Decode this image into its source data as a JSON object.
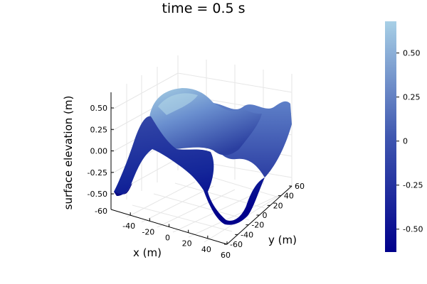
{
  "chart_data": {
    "type": "surface",
    "title": "time = 0.5 s",
    "xlabel": "x (m)",
    "ylabel": "y (m)",
    "zlabel": "surface elevation (m)",
    "xlim": [
      -60,
      60
    ],
    "ylim": [
      -60,
      60
    ],
    "zlim": [
      -0.6,
      0.7
    ],
    "x_ticks": [
      "-40",
      "-20",
      "0",
      "20",
      "40",
      "60"
    ],
    "y_ticks": [
      "-60",
      "-40",
      "-20",
      "0",
      "20",
      "40",
      "60"
    ],
    "z_ticks": [
      "-0.50",
      "-0.25",
      "0.00",
      "0.25",
      "0.50"
    ],
    "z_tick_values": [
      -0.5,
      -0.25,
      0,
      0.25,
      0.5
    ],
    "colorbar": {
      "ticks": [
        "-0.50",
        "-0.25",
        "0",
        "0.25",
        "0.50"
      ],
      "tick_values": [
        -0.5,
        -0.25,
        0,
        0.25,
        0.5
      ],
      "range": [
        -0.63,
        0.68
      ],
      "colors": [
        "#00008b",
        "#a8d0e6"
      ]
    },
    "grid": true,
    "legend": "none"
  }
}
